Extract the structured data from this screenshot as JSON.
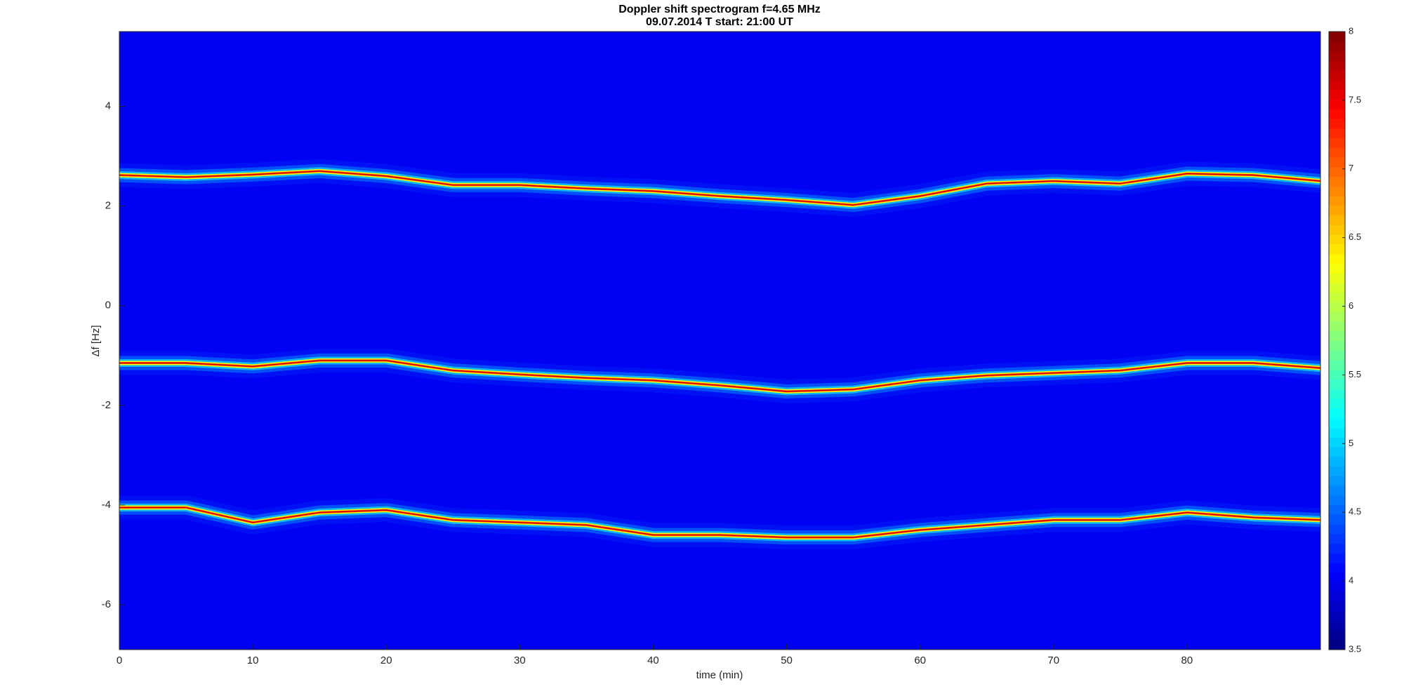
{
  "chart_data": {
    "type": "spectrogram",
    "title": "Doppler shift spectrogram f=4.65 MHz",
    "subtitle": "09.07.2014   T start: 21:00 UT",
    "xlabel": "time (min)",
    "ylabel": "Δf [Hz]",
    "xlim": [
      0,
      90
    ],
    "xticks": [
      0,
      10,
      20,
      30,
      40,
      50,
      60,
      70,
      80
    ],
    "ylim": [
      -6.9,
      5.5
    ],
    "yticks": [
      -6,
      -4,
      -2,
      0,
      2,
      4
    ],
    "colormap": "jet",
    "clim": [
      3.5,
      8
    ],
    "cticks": [
      3.5,
      4,
      4.5,
      5,
      5.5,
      6,
      6.5,
      7,
      7.5,
      8
    ],
    "x": [
      0,
      5,
      10,
      15,
      20,
      25,
      30,
      35,
      40,
      45,
      50,
      55,
      60,
      65,
      70,
      75,
      80,
      85,
      90
    ],
    "series": [
      {
        "values": [
          2.62,
          2.58,
          2.63,
          2.7,
          2.6,
          2.42,
          2.42,
          2.35,
          2.3,
          2.2,
          2.12,
          2.02,
          2.2,
          2.45,
          2.5,
          2.45,
          2.65,
          2.62,
          2.5
        ]
      },
      {
        "values": [
          -1.15,
          -1.15,
          -1.22,
          -1.1,
          -1.1,
          -1.3,
          -1.38,
          -1.45,
          -1.5,
          -1.6,
          -1.72,
          -1.68,
          -1.5,
          -1.4,
          -1.35,
          -1.3,
          -1.15,
          -1.15,
          -1.25
        ]
      },
      {
        "values": [
          -4.05,
          -4.05,
          -4.35,
          -4.15,
          -4.1,
          -4.3,
          -4.35,
          -4.4,
          -4.6,
          -4.6,
          -4.65,
          -4.65,
          -4.5,
          -4.4,
          -4.3,
          -4.3,
          -4.15,
          -4.25,
          -4.3
        ]
      }
    ]
  }
}
